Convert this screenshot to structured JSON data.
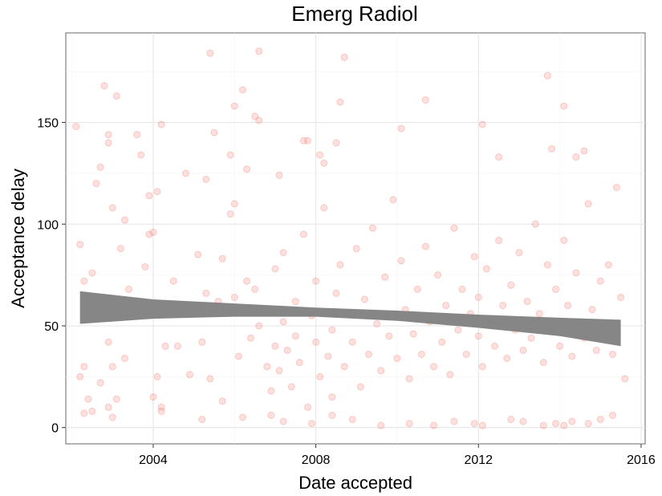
{
  "chart_data": {
    "type": "scatter",
    "title": "Emerg Radiol",
    "xlabel": "Date accepted",
    "ylabel": "Acceptance delay",
    "xlim": [
      2001.85,
      2016.1
    ],
    "ylim": [
      -8,
      194
    ],
    "xticks": [
      2004,
      2008,
      2012,
      2016
    ],
    "yticks": [
      0,
      50,
      100,
      150
    ],
    "grid": true,
    "point_color": "#f8766d",
    "band_color": "#7f7f7f",
    "trend": {
      "x": [
        2002.2,
        2004,
        2006,
        2008,
        2010,
        2012,
        2014,
        2015.5
      ],
      "lower": [
        51,
        53.5,
        54.5,
        54.5,
        52.5,
        49,
        45,
        40
      ],
      "upper": [
        67,
        63,
        61,
        59,
        57.5,
        55.5,
        54,
        53
      ]
    },
    "points": [
      [
        2002.1,
        148
      ],
      [
        2002.2,
        90
      ],
      [
        2002.3,
        72
      ],
      [
        2002.5,
        76
      ],
      [
        2002.6,
        120
      ],
      [
        2002.7,
        128
      ],
      [
        2002.8,
        168
      ],
      [
        2002.9,
        140
      ],
      [
        2002.9,
        144
      ],
      [
        2003.0,
        108
      ],
      [
        2003.1,
        163
      ],
      [
        2003.3,
        102
      ],
      [
        2003.6,
        144
      ],
      [
        2003.7,
        134
      ],
      [
        2003.9,
        114
      ],
      [
        2004.1,
        116
      ],
      [
        2004.2,
        149
      ],
      [
        2004.8,
        125
      ],
      [
        2005.3,
        122
      ],
      [
        2005.4,
        184
      ],
      [
        2005.5,
        145
      ],
      [
        2005.9,
        134
      ],
      [
        2006.0,
        158
      ],
      [
        2006.2,
        166
      ],
      [
        2006.3,
        127
      ],
      [
        2006.5,
        153
      ],
      [
        2006.6,
        185
      ],
      [
        2006.6,
        151
      ],
      [
        2007.1,
        124
      ],
      [
        2007.7,
        141
      ],
      [
        2007.8,
        141
      ],
      [
        2008.1,
        134
      ],
      [
        2008.2,
        130
      ],
      [
        2008.5,
        140
      ],
      [
        2008.6,
        160
      ],
      [
        2008.7,
        182
      ],
      [
        2010.1,
        147
      ],
      [
        2010.7,
        161
      ],
      [
        2012.1,
        149
      ],
      [
        2012.5,
        133
      ],
      [
        2013.7,
        173
      ],
      [
        2013.8,
        137
      ],
      [
        2014.1,
        158
      ],
      [
        2014.4,
        133
      ],
      [
        2014.6,
        136
      ],
      [
        2002.2,
        25
      ],
      [
        2002.3,
        30
      ],
      [
        2002.4,
        14
      ],
      [
        2002.5,
        8
      ],
      [
        2002.7,
        22
      ],
      [
        2002.9,
        42
      ],
      [
        2003.0,
        30
      ],
      [
        2003.1,
        14
      ],
      [
        2003.2,
        88
      ],
      [
        2003.3,
        34
      ],
      [
        2003.4,
        68
      ],
      [
        2003.6,
        58
      ],
      [
        2003.8,
        79
      ],
      [
        2003.9,
        95
      ],
      [
        2004.0,
        96
      ],
      [
        2004.0,
        15
      ],
      [
        2004.1,
        25
      ],
      [
        2004.2,
        10
      ],
      [
        2004.3,
        40
      ],
      [
        2004.5,
        72
      ],
      [
        2004.6,
        40
      ],
      [
        2004.9,
        26
      ],
      [
        2005.1,
        85
      ],
      [
        2005.2,
        42
      ],
      [
        2005.3,
        66
      ],
      [
        2005.4,
        24
      ],
      [
        2005.6,
        62
      ],
      [
        2005.7,
        83
      ],
      [
        2005.9,
        105
      ],
      [
        2006.0,
        110
      ],
      [
        2006.0,
        64
      ],
      [
        2006.1,
        35
      ],
      [
        2006.3,
        72
      ],
      [
        2006.4,
        44
      ],
      [
        2006.5,
        68
      ],
      [
        2006.6,
        50
      ],
      [
        2006.8,
        30
      ],
      [
        2006.9,
        18
      ],
      [
        2007.0,
        40
      ],
      [
        2007.0,
        78
      ],
      [
        2007.1,
        28
      ],
      [
        2007.2,
        52
      ],
      [
        2007.2,
        86
      ],
      [
        2007.3,
        38
      ],
      [
        2007.4,
        20
      ],
      [
        2007.5,
        62
      ],
      [
        2007.5,
        45
      ],
      [
        2007.6,
        32
      ],
      [
        2007.7,
        95
      ],
      [
        2007.8,
        10
      ],
      [
        2007.9,
        55
      ],
      [
        2008.0,
        42
      ],
      [
        2008.0,
        72
      ],
      [
        2008.1,
        25
      ],
      [
        2008.2,
        108
      ],
      [
        2008.3,
        35
      ],
      [
        2008.4,
        48
      ],
      [
        2008.4,
        15
      ],
      [
        2008.5,
        66
      ],
      [
        2008.6,
        80
      ],
      [
        2008.7,
        30
      ],
      [
        2008.8,
        56
      ],
      [
        2008.9,
        42
      ],
      [
        2009.0,
        88
      ],
      [
        2009.1,
        20
      ],
      [
        2009.2,
        63
      ],
      [
        2009.3,
        36
      ],
      [
        2009.4,
        98
      ],
      [
        2009.5,
        51
      ],
      [
        2009.6,
        28
      ],
      [
        2009.7,
        74
      ],
      [
        2009.8,
        45
      ],
      [
        2009.9,
        112
      ],
      [
        2010.0,
        34
      ],
      [
        2010.1,
        82
      ],
      [
        2010.2,
        58
      ],
      [
        2010.3,
        24
      ],
      [
        2010.4,
        46
      ],
      [
        2010.5,
        68
      ],
      [
        2010.6,
        36
      ],
      [
        2010.7,
        89
      ],
      [
        2010.8,
        52
      ],
      [
        2010.9,
        30
      ],
      [
        2011.0,
        75
      ],
      [
        2011.1,
        42
      ],
      [
        2011.2,
        60
      ],
      [
        2011.3,
        26
      ],
      [
        2011.4,
        98
      ],
      [
        2011.5,
        48
      ],
      [
        2011.6,
        68
      ],
      [
        2011.7,
        36
      ],
      [
        2011.8,
        56
      ],
      [
        2011.9,
        84
      ],
      [
        2012.0,
        45
      ],
      [
        2012.0,
        64
      ],
      [
        2012.1,
        30
      ],
      [
        2012.2,
        78
      ],
      [
        2012.3,
        52
      ],
      [
        2012.4,
        40
      ],
      [
        2012.5,
        92
      ],
      [
        2012.6,
        60
      ],
      [
        2012.7,
        34
      ],
      [
        2012.8,
        70
      ],
      [
        2012.9,
        48
      ],
      [
        2013.0,
        86
      ],
      [
        2013.1,
        38
      ],
      [
        2013.2,
        62
      ],
      [
        2013.3,
        44
      ],
      [
        2013.4,
        100
      ],
      [
        2013.5,
        56
      ],
      [
        2013.6,
        32
      ],
      [
        2013.7,
        80
      ],
      [
        2013.8,
        48
      ],
      [
        2013.9,
        68
      ],
      [
        2014.0,
        40
      ],
      [
        2014.1,
        92
      ],
      [
        2014.2,
        60
      ],
      [
        2014.3,
        35
      ],
      [
        2014.4,
        76
      ],
      [
        2014.5,
        52
      ],
      [
        2014.6,
        44
      ],
      [
        2014.7,
        110
      ],
      [
        2014.8,
        58
      ],
      [
        2014.9,
        38
      ],
      [
        2015.0,
        72
      ],
      [
        2015.1,
        46
      ],
      [
        2015.2,
        80
      ],
      [
        2015.3,
        36
      ],
      [
        2015.4,
        118
      ],
      [
        2015.5,
        64
      ],
      [
        2015.6,
        24
      ],
      [
        2002.3,
        7
      ],
      [
        2002.9,
        10
      ],
      [
        2003.0,
        5
      ],
      [
        2004.2,
        8
      ],
      [
        2005.2,
        4
      ],
      [
        2005.7,
        13
      ],
      [
        2006.2,
        5
      ],
      [
        2006.9,
        6
      ],
      [
        2007.2,
        3
      ],
      [
        2007.9,
        2
      ],
      [
        2008.4,
        6
      ],
      [
        2008.9,
        4
      ],
      [
        2009.6,
        1
      ],
      [
        2010.3,
        2
      ],
      [
        2010.9,
        1
      ],
      [
        2011.4,
        3
      ],
      [
        2011.9,
        2
      ],
      [
        2012.1,
        1
      ],
      [
        2012.8,
        4
      ],
      [
        2013.1,
        3
      ],
      [
        2013.6,
        1
      ],
      [
        2013.9,
        2
      ],
      [
        2014.1,
        1
      ],
      [
        2014.3,
        3
      ],
      [
        2014.7,
        2
      ],
      [
        2015.0,
        4
      ],
      [
        2015.3,
        6
      ]
    ]
  }
}
